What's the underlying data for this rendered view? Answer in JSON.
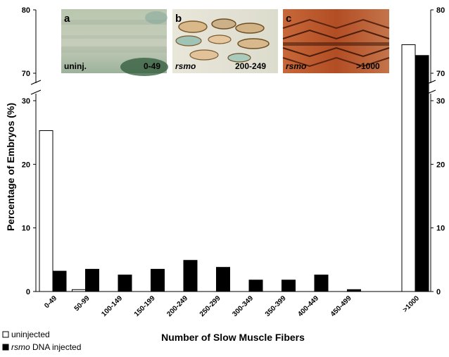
{
  "chart_data": {
    "type": "bar",
    "ylabel": "Percentage of Embryos (%)",
    "xlabel": "Number of Slow Muscle Fibers",
    "categories": [
      "0-49",
      "50-99",
      "100-149",
      "150-199",
      "200-249",
      "250-299",
      "300-349",
      "350-399",
      "400-449",
      "450-499",
      ">1000"
    ],
    "series": [
      {
        "name": "uninjected",
        "fill": "#ffffff",
        "values": [
          25.3,
          0.3,
          0,
          0,
          0,
          0,
          0,
          0,
          0,
          0,
          74.5
        ]
      },
      {
        "name": "rsmo DNA injected",
        "fill": "#000000",
        "values": [
          3.2,
          3.5,
          2.6,
          3.5,
          4.9,
          3.8,
          1.8,
          1.8,
          2.6,
          0.3,
          72.8
        ]
      }
    ],
    "y_axis": {
      "broken": true,
      "lower_segment": {
        "range": [
          0,
          30
        ],
        "ticks": [
          0,
          10,
          20,
          30
        ]
      },
      "upper_segment": {
        "range": [
          70,
          80
        ],
        "ticks": [
          70,
          80
        ]
      }
    },
    "legend_placement": "bottom-left",
    "grid": false
  },
  "legend": {
    "uninjected_label": "uninjected",
    "injected_label_italic": "rsmo",
    "injected_label_rest": " DNA injected"
  },
  "insets": [
    {
      "letter": "a",
      "caption": "uninj.",
      "range_label": "0-49",
      "range_color": "#bfcfc0"
    },
    {
      "letter": "b",
      "caption": "rsmo",
      "range_label": "200-249",
      "range_color": "#000000"
    },
    {
      "letter": "c",
      "caption": "rsmo",
      "range_label": ">1000",
      "range_color": "#ffffff"
    }
  ]
}
